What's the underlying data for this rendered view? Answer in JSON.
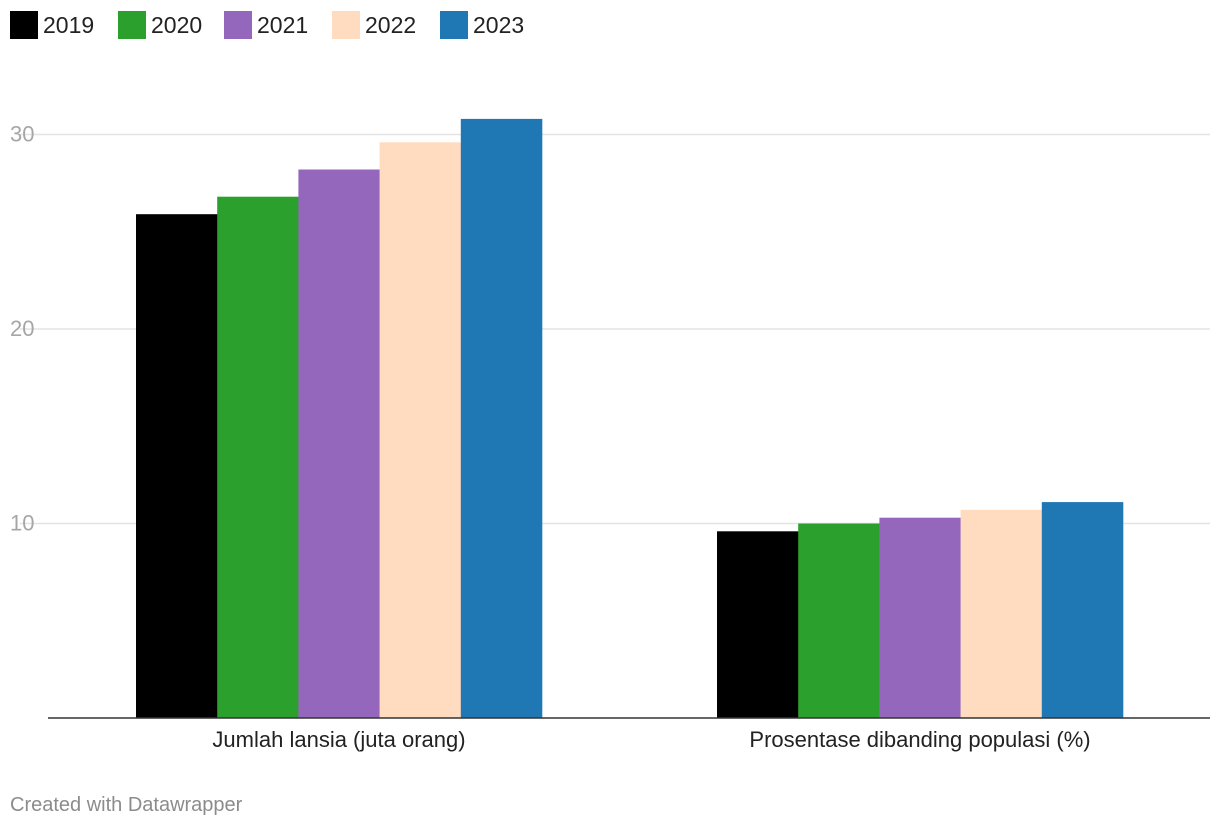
{
  "chart_data": {
    "type": "bar",
    "title": "",
    "xlabel": "",
    "ylabel": "",
    "categories": [
      "Jumlah lansia (juta orang)",
      "Prosentase dibanding populasi (%)"
    ],
    "series": [
      {
        "name": "2019",
        "color": "#000000",
        "values": [
          25.9,
          9.6
        ]
      },
      {
        "name": "2020",
        "color": "#2ca02c",
        "values": [
          26.8,
          10.0
        ]
      },
      {
        "name": "2021",
        "color": "#9467bd",
        "values": [
          28.2,
          10.3
        ]
      },
      {
        "name": "2022",
        "color": "#ffdbbf",
        "values": [
          29.6,
          10.7
        ]
      },
      {
        "name": "2023",
        "color": "#1f77b4",
        "values": [
          30.8,
          11.1
        ]
      }
    ],
    "ylim": [
      0,
      30.8
    ],
    "yticks": [
      10,
      20,
      30
    ],
    "grid": true,
    "legend_position": "top-left"
  },
  "footer": {
    "credit": "Created with Datawrapper"
  }
}
